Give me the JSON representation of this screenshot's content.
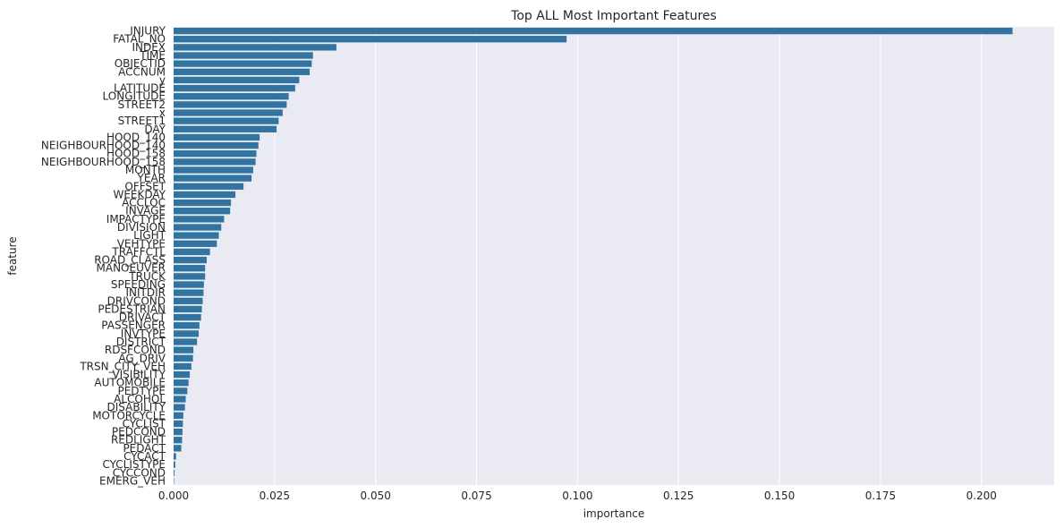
{
  "chart_data": {
    "type": "bar",
    "orientation": "horizontal",
    "title": "Top ALL Most Important Features",
    "xlabel": "importance",
    "ylabel": "feature",
    "xlim": [
      0,
      0.218
    ],
    "xticks": [
      "0.000",
      "0.025",
      "0.050",
      "0.075",
      "0.100",
      "0.125",
      "0.150",
      "0.175",
      "0.200"
    ],
    "grid": true,
    "background": "#eaeaf2",
    "bar_color": "#3274a1",
    "categories": [
      "INJURY",
      "FATAL_NO",
      "INDEX",
      "TIME",
      "OBJECTID",
      "ACCNUM",
      "y",
      "LATITUDE",
      "LONGITUDE",
      "STREET2",
      "x",
      "STREET1",
      "DAY",
      "HOOD_140",
      "NEIGHBOURHOOD_140",
      "HOOD_158",
      "NEIGHBOURHOOD_158",
      "MONTH",
      "YEAR",
      "OFFSET",
      "WEEKDAY",
      "ACCLOC",
      "INVAGE",
      "IMPACTYPE",
      "DIVISION",
      "LIGHT",
      "VEHTYPE",
      "TRAFFCTL",
      "ROAD_CLASS",
      "MANOEUVER",
      "TRUCK",
      "SPEEDING",
      "INITDIR",
      "DRIVCOND",
      "PEDESTRIAN",
      "DRIVACT",
      "PASSENGER",
      "INVTYPE",
      "DISTRICT",
      "RDSFCOND",
      "AG_DRIV",
      "TRSN_CITY_VEH",
      "VISIBILITY",
      "AUTOMOBILE",
      "PEDTYPE",
      "ALCOHOL",
      "DISABILITY",
      "MOTORCYCLE",
      "CYCLIST",
      "PEDCOND",
      "REDLIGHT",
      "PEDACT",
      "CYCACT",
      "CYCLISTYPE",
      "CYCCOND",
      "EMERG_VEH"
    ],
    "values": [
      0.2077,
      0.0973,
      0.0403,
      0.0345,
      0.0342,
      0.0337,
      0.0311,
      0.0301,
      0.0285,
      0.028,
      0.027,
      0.026,
      0.0255,
      0.0213,
      0.021,
      0.0205,
      0.0203,
      0.0197,
      0.0193,
      0.0173,
      0.0153,
      0.0142,
      0.014,
      0.0125,
      0.0118,
      0.0112,
      0.0107,
      0.009,
      0.0082,
      0.0078,
      0.0078,
      0.0075,
      0.0074,
      0.0072,
      0.007,
      0.0068,
      0.0064,
      0.0062,
      0.0058,
      0.0049,
      0.0048,
      0.0044,
      0.004,
      0.0037,
      0.0034,
      0.003,
      0.0028,
      0.0024,
      0.0023,
      0.0022,
      0.0021,
      0.0019,
      0.0006,
      0.0004,
      0.0002,
      0.0001
    ]
  }
}
